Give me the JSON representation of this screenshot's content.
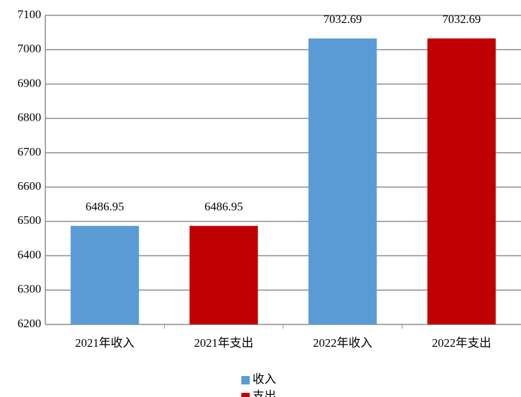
{
  "chart_data": {
    "type": "bar",
    "categories": [
      "2021年收入",
      "2021年支出",
      "2022年收入",
      "2022年支出"
    ],
    "series": [
      {
        "name": "收入",
        "color": "#5b9bd5",
        "values": [
          6486.95,
          null,
          7032.69,
          null
        ]
      },
      {
        "name": "支出",
        "color": "#c00000",
        "values": [
          null,
          6486.95,
          null,
          7032.69
        ]
      }
    ],
    "ylim": [
      6200,
      7100
    ],
    "yticks": [
      6200,
      6300,
      6400,
      6500,
      6600,
      6700,
      6800,
      6900,
      7000,
      7100
    ],
    "grid": true,
    "legend": "bottom"
  }
}
